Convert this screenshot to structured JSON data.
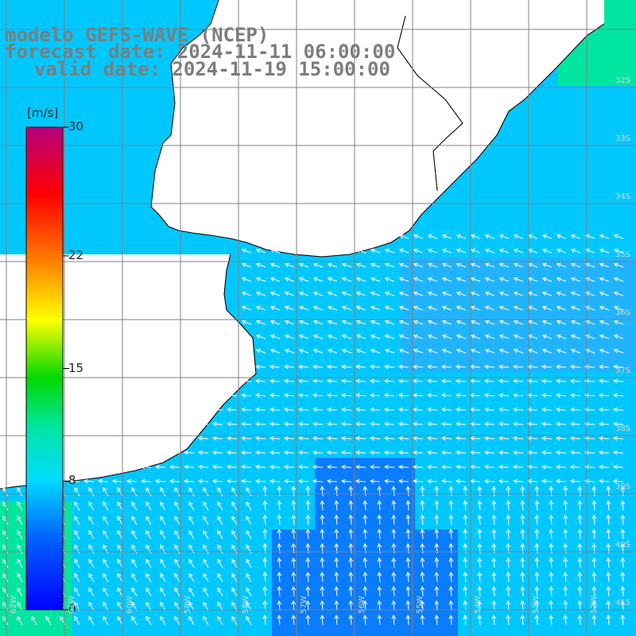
{
  "title": {
    "model": "modelo GEFS-WAVE (NCEP)",
    "forecast_date": "forecast date: 2024-11-11 06:00:00",
    "valid_date": "valid date: 2024-11-19 15:00:00"
  },
  "colorbar": {
    "unit": "[m/s]",
    "ticks": [
      {
        "value": 0,
        "label": "0"
      },
      {
        "value": 8,
        "label": "8"
      },
      {
        "value": 15,
        "label": "15"
      },
      {
        "value": 22,
        "label": "22"
      },
      {
        "value": 30,
        "label": "30"
      }
    ],
    "range": [
      0,
      30
    ]
  },
  "axes": {
    "lat_labels": [
      "32S",
      "33S",
      "34S",
      "35S",
      "36S",
      "37S",
      "38S",
      "39S",
      "40S",
      "41S"
    ],
    "lon_labels": [
      "62W",
      "61W",
      "60W",
      "59W",
      "58W",
      "57W",
      "56W",
      "55W",
      "54W",
      "53W",
      "52W",
      "51W",
      "50W"
    ]
  },
  "colors": {
    "ocean_primary": "#00c8ff",
    "ocean_weak": "#0a7cff",
    "ocean_green": "#00e6a0",
    "land": "#ffffff",
    "grid": "#808080",
    "coast": "#000000",
    "arrow": "#ffffff"
  }
}
